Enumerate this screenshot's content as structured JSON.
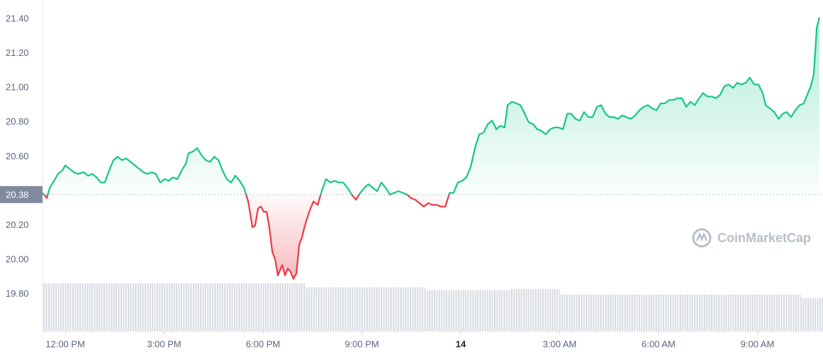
{
  "chart_data": {
    "type": "line",
    "watermark": "CoinMarketCap",
    "xlim": [
      -0.69,
      22.99
    ],
    "ylim": [
      19.585,
      21.511
    ],
    "xticks": [
      {
        "value": 0,
        "label": "12:00 PM"
      },
      {
        "value": 3,
        "label": "3:00 PM"
      },
      {
        "value": 6,
        "label": "6:00 PM"
      },
      {
        "value": 9,
        "label": "9:00 PM"
      },
      {
        "value": 12,
        "label": "14"
      },
      {
        "value": 15,
        "label": "3:00 AM"
      },
      {
        "value": 18,
        "label": "6:00 AM"
      },
      {
        "value": 21,
        "label": "9:00 AM"
      }
    ],
    "yticks": [
      {
        "value": 19.8,
        "label": "19.80"
      },
      {
        "value": 20.0,
        "label": "20.00"
      },
      {
        "value": 20.2,
        "label": "20.20"
      },
      {
        "value": 20.6,
        "label": "20.60"
      },
      {
        "value": 20.8,
        "label": "20.80"
      },
      {
        "value": 21.0,
        "label": "21.00"
      },
      {
        "value": 21.2,
        "label": "21.20"
      },
      {
        "value": 21.4,
        "label": "21.40"
      }
    ],
    "baseline": {
      "value": 20.38,
      "label": "20.38"
    },
    "up_color": "#16c784",
    "down_color": "#ea3943",
    "x": [
      -0.69,
      -0.56,
      -0.47,
      -0.34,
      -0.22,
      -0.09,
      0,
      0.13,
      0.26,
      0.39,
      0.56,
      0.69,
      0.82,
      0.95,
      1.08,
      1.2,
      1.33,
      1.46,
      1.59,
      1.72,
      1.85,
      1.98,
      2.11,
      2.24,
      2.37,
      2.49,
      2.62,
      2.75,
      2.88,
      3.01,
      3.14,
      3.27,
      3.4,
      3.53,
      3.66,
      3.74,
      3.87,
      4.0,
      4.13,
      4.26,
      4.39,
      4.52,
      4.65,
      4.77,
      4.9,
      5.03,
      5.16,
      5.29,
      5.42,
      5.55,
      5.68,
      5.76,
      5.85,
      5.94,
      6.02,
      6.11,
      6.19,
      6.28,
      6.37,
      6.45,
      6.58,
      6.67,
      6.75,
      6.84,
      6.92,
      7.01,
      7.1,
      7.18,
      7.27,
      7.4,
      7.53,
      7.66,
      7.78,
      7.91,
      8.04,
      8.17,
      8.3,
      8.43,
      8.56,
      8.69,
      8.82,
      8.95,
      9.08,
      9.2,
      9.33,
      9.46,
      9.59,
      9.72,
      9.85,
      9.98,
      10.11,
      10.24,
      10.37,
      10.49,
      10.62,
      10.75,
      10.88,
      11.01,
      11.14,
      11.27,
      11.4,
      11.53,
      11.66,
      11.78,
      11.91,
      12.04,
      12.17,
      12.3,
      12.43,
      12.56,
      12.69,
      12.82,
      12.95,
      13.08,
      13.2,
      13.33,
      13.42,
      13.55,
      13.68,
      13.81,
      13.94,
      14.06,
      14.19,
      14.32,
      14.45,
      14.58,
      14.71,
      14.84,
      14.97,
      15.1,
      15.23,
      15.35,
      15.48,
      15.61,
      15.74,
      15.87,
      16.0,
      16.13,
      16.26,
      16.39,
      16.52,
      16.65,
      16.77,
      16.9,
      17.03,
      17.16,
      17.29,
      17.42,
      17.55,
      17.68,
      17.81,
      17.94,
      18.06,
      18.19,
      18.32,
      18.45,
      18.58,
      18.71,
      18.84,
      18.97,
      19.1,
      19.23,
      19.35,
      19.48,
      19.61,
      19.74,
      19.87,
      20.0,
      20.13,
      20.26,
      20.39,
      20.52,
      20.65,
      20.77,
      20.9,
      21.03,
      21.16,
      21.25,
      21.38,
      21.51,
      21.64,
      21.77,
      21.89,
      22.02,
      22.15,
      22.28,
      22.41,
      22.49,
      22.62,
      22.71,
      22.8,
      22.88
    ],
    "values": [
      20.39,
      20.36,
      20.42,
      20.46,
      20.5,
      20.52,
      20.55,
      20.53,
      20.51,
      20.5,
      20.51,
      20.49,
      20.5,
      20.48,
      20.45,
      20.45,
      20.52,
      20.58,
      20.6,
      20.58,
      20.59,
      20.57,
      20.55,
      20.53,
      20.51,
      20.5,
      20.51,
      20.5,
      20.45,
      20.47,
      20.46,
      20.48,
      20.47,
      20.52,
      20.56,
      20.62,
      20.63,
      20.65,
      20.61,
      20.58,
      20.57,
      20.6,
      20.58,
      20.52,
      20.47,
      20.45,
      20.49,
      20.46,
      20.42,
      20.34,
      20.19,
      20.2,
      20.3,
      20.31,
      20.28,
      20.28,
      20.19,
      20.05,
      20.0,
      19.91,
      19.97,
      19.91,
      19.95,
      19.93,
      19.89,
      19.92,
      20.09,
      20.13,
      20.2,
      20.28,
      20.34,
      20.32,
      20.4,
      20.47,
      20.45,
      20.46,
      20.45,
      20.45,
      20.42,
      20.38,
      20.35,
      20.39,
      20.42,
      20.44,
      20.42,
      20.4,
      20.45,
      20.42,
      20.38,
      20.39,
      20.4,
      20.39,
      20.38,
      20.36,
      20.35,
      20.33,
      20.31,
      20.33,
      20.32,
      20.32,
      20.31,
      20.31,
      20.39,
      20.39,
      20.45,
      20.46,
      20.48,
      20.54,
      20.65,
      20.73,
      20.74,
      20.79,
      20.81,
      20.76,
      20.78,
      20.77,
      20.9,
      20.92,
      20.91,
      20.9,
      20.85,
      20.8,
      20.79,
      20.76,
      20.75,
      20.73,
      20.76,
      20.77,
      20.77,
      20.76,
      20.85,
      20.85,
      20.82,
      20.81,
      20.86,
      20.83,
      20.83,
      20.89,
      20.9,
      20.85,
      20.83,
      20.83,
      20.82,
      20.84,
      20.83,
      20.82,
      20.84,
      20.87,
      20.89,
      20.9,
      20.88,
      20.87,
      20.91,
      20.91,
      20.93,
      20.93,
      20.94,
      20.94,
      20.89,
      20.92,
      20.9,
      20.94,
      20.97,
      20.95,
      20.95,
      20.94,
      20.96,
      21.01,
      21.02,
      21.0,
      21.03,
      21.02,
      21.03,
      21.06,
      21.02,
      21.02,
      20.97,
      20.9,
      20.88,
      20.86,
      20.82,
      20.85,
      20.86,
      20.83,
      20.87,
      20.9,
      20.91,
      20.95,
      21.01,
      21.08,
      21.35,
      21.41
    ],
    "volume": {
      "bins": [
        -0.69,
        7.27,
        10.92,
        13.51,
        15.01,
        22.32,
        22.99
      ],
      "values": [
        14.5,
        13.3,
        12.4,
        12.8,
        11.1,
        10.0
      ],
      "vlim": [
        0,
        100
      ],
      "color": "#d5d9e0"
    }
  }
}
